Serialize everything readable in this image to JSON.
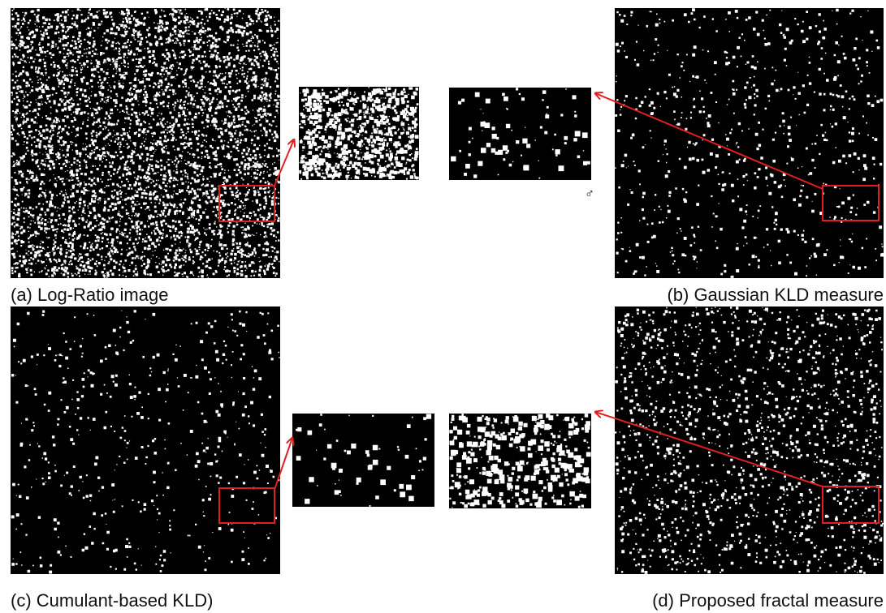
{
  "captions": {
    "a": "(a) Log-Ratio image",
    "b": "(b) Gaussian KLD measure",
    "c": "(c) Cumulant-based KLD)",
    "d": "(d) Proposed fractal measure"
  },
  "symbol": "♂"
}
